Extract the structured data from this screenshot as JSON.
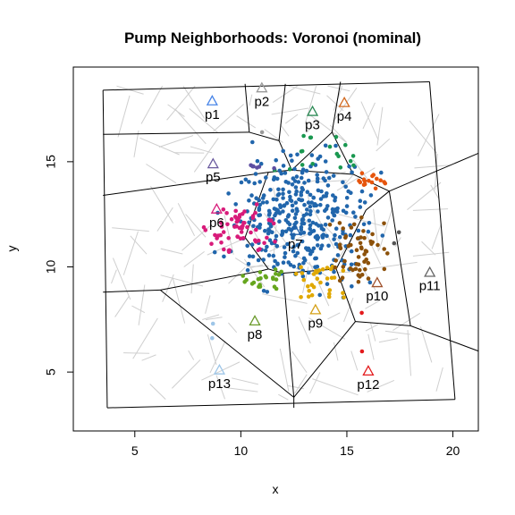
{
  "chart_data": {
    "type": "scatter",
    "title": "Pump Neighborhoods: Voronoi (nominal)",
    "xlabel": "x",
    "ylabel": "y",
    "xlim": [
      2.1,
      21.2
    ],
    "ylim": [
      2.2,
      19.5
    ],
    "xticks": [
      5,
      10,
      15,
      20
    ],
    "yticks": [
      5,
      10,
      15
    ],
    "grid": false,
    "legend": "none",
    "pumps": [
      {
        "id": "p1",
        "x": 8.65,
        "y": 17.89,
        "color": "#4a86e8"
      },
      {
        "id": "p2",
        "x": 10.99,
        "y": 18.51,
        "color": "#999999"
      },
      {
        "id": "p3",
        "x": 13.38,
        "y": 17.39,
        "color": "#2e8b57"
      },
      {
        "id": "p4",
        "x": 14.88,
        "y": 17.81,
        "color": "#d2691e"
      },
      {
        "id": "p5",
        "x": 8.69,
        "y": 14.9,
        "color": "#6a5a9e"
      },
      {
        "id": "p6",
        "x": 8.86,
        "y": 12.75,
        "color": "#d81b7a"
      },
      {
        "id": "p7",
        "x": 12.57,
        "y": 11.73,
        "color": "#1f5fa8"
      },
      {
        "id": "p8",
        "x": 10.66,
        "y": 7.43,
        "color": "#6a9a2a"
      },
      {
        "id": "p9",
        "x": 13.52,
        "y": 7.96,
        "color": "#d4a017"
      },
      {
        "id": "p10",
        "x": 16.43,
        "y": 9.25,
        "color": "#a0522d"
      },
      {
        "id": "p11",
        "x": 18.91,
        "y": 9.74,
        "color": "#666666"
      },
      {
        "id": "p12",
        "x": 16.01,
        "y": 5.05,
        "color": "#e31a1c"
      },
      {
        "id": "p13",
        "x": 8.99,
        "y": 5.1,
        "color": "#9ec6e8"
      }
    ],
    "cases": [
      {
        "pump": "p7",
        "color": "#2166ac",
        "count": 360,
        "center": [
          12.8,
          12.2
        ],
        "spread": [
          1.55,
          1.45
        ]
      },
      {
        "pump": "p6",
        "color": "#d81b7a",
        "count": 60,
        "center": [
          10.0,
          11.8
        ],
        "spread": [
          0.7,
          0.6
        ]
      },
      {
        "pump": "p3",
        "color": "#1a9850",
        "count": 18,
        "center": [
          13.6,
          15.4
        ],
        "spread": [
          0.8,
          0.6
        ]
      },
      {
        "pump": "p4",
        "color": "#e6550d",
        "count": 16,
        "center": [
          16.2,
          14.1
        ],
        "spread": [
          0.4,
          0.2
        ]
      },
      {
        "pump": "p5",
        "color": "#5e4fa2",
        "count": 6,
        "center": [
          10.9,
          14.7
        ],
        "spread": [
          0.3,
          0.1
        ]
      },
      {
        "pump": "p8",
        "color": "#66a61e",
        "count": 22,
        "center": [
          11.3,
          9.5
        ],
        "spread": [
          0.6,
          0.35
        ]
      },
      {
        "pump": "p9",
        "color": "#e0a800",
        "count": 30,
        "center": [
          13.8,
          9.2
        ],
        "spread": [
          0.7,
          0.55
        ]
      },
      {
        "pump": "p10",
        "color": "#8c510a",
        "count": 55,
        "center": [
          15.6,
          10.6
        ],
        "spread": [
          0.7,
          0.9
        ]
      },
      {
        "pump": "p11",
        "color": "#555555",
        "count": 2,
        "center": [
          17.3,
          11.4
        ],
        "spread": [
          0.1,
          0.2
        ]
      },
      {
        "pump": "p12",
        "color": "#e31a1c",
        "count": 2,
        "center": [
          15.8,
          6.8
        ],
        "spread": [
          0.1,
          0.6
        ]
      },
      {
        "pump": "p13",
        "color": "#9ec6e8",
        "count": 2,
        "center": [
          8.7,
          6.8
        ],
        "spread": [
          0.2,
          0.5
        ]
      },
      {
        "pump": "p2",
        "color": "#999999",
        "count": 1,
        "center": [
          11.0,
          16.4
        ],
        "spread": [
          0.0,
          0.0
        ]
      }
    ],
    "voronoi_edges": [
      [
        [
          3.5,
          18.4
        ],
        [
          18.9,
          18.8
        ]
      ],
      [
        [
          18.9,
          18.8
        ],
        [
          20.1,
          3.7
        ]
      ],
      [
        [
          20.1,
          3.7
        ],
        [
          3.7,
          3.3
        ]
      ],
      [
        [
          3.7,
          3.3
        ],
        [
          3.5,
          18.4
        ]
      ],
      [
        [
          10.2,
          18.7
        ],
        [
          10.4,
          16.4
        ]
      ],
      [
        [
          10.4,
          16.4
        ],
        [
          3.5,
          16.3
        ]
      ],
      [
        [
          10.4,
          16.4
        ],
        [
          11.8,
          16.0
        ]
      ],
      [
        [
          12.1,
          18.7
        ],
        [
          11.8,
          16.0
        ]
      ],
      [
        [
          11.8,
          16.0
        ],
        [
          12.4,
          14.6
        ]
      ],
      [
        [
          14.7,
          18.8
        ],
        [
          14.3,
          16.4
        ]
      ],
      [
        [
          14.3,
          16.4
        ],
        [
          12.4,
          14.6
        ]
      ],
      [
        [
          14.3,
          16.4
        ],
        [
          15.3,
          14.4
        ]
      ],
      [
        [
          12.4,
          14.6
        ],
        [
          15.3,
          14.4
        ]
      ],
      [
        [
          15.3,
          14.4
        ],
        [
          17.0,
          13.6
        ]
      ],
      [
        [
          17.0,
          13.6
        ],
        [
          21.2,
          15.4
        ]
      ],
      [
        [
          12.4,
          14.6
        ],
        [
          11.3,
          14.5
        ]
      ],
      [
        [
          11.3,
          14.5
        ],
        [
          3.5,
          13.4
        ]
      ],
      [
        [
          11.3,
          14.5
        ],
        [
          10.2,
          11.4
        ]
      ],
      [
        [
          10.2,
          11.4
        ],
        [
          11.3,
          9.9
        ]
      ],
      [
        [
          11.3,
          9.9
        ],
        [
          12.0,
          9.7
        ]
      ],
      [
        [
          12.0,
          9.7
        ],
        [
          14.5,
          9.9
        ]
      ],
      [
        [
          14.5,
          9.9
        ],
        [
          15.9,
          12.7
        ]
      ],
      [
        [
          15.9,
          12.7
        ],
        [
          17.0,
          13.6
        ]
      ],
      [
        [
          17.0,
          13.6
        ],
        [
          18.0,
          7.2
        ]
      ],
      [
        [
          18.0,
          7.2
        ],
        [
          15.4,
          7.4
        ]
      ],
      [
        [
          15.4,
          7.4
        ],
        [
          14.5,
          9.9
        ]
      ],
      [
        [
          18.0,
          7.2
        ],
        [
          21.2,
          6.0
        ]
      ],
      [
        [
          15.4,
          7.4
        ],
        [
          12.5,
          3.8
        ]
      ],
      [
        [
          12.0,
          9.7
        ],
        [
          12.5,
          3.8
        ]
      ],
      [
        [
          12.5,
          3.8
        ],
        [
          12.5,
          3.3
        ]
      ],
      [
        [
          12.5,
          3.8
        ],
        [
          6.2,
          8.9
        ]
      ],
      [
        [
          11.3,
          9.9
        ],
        [
          10.9,
          9.8
        ]
      ],
      [
        [
          10.9,
          9.8
        ],
        [
          6.2,
          8.9
        ]
      ],
      [
        [
          6.2,
          8.9
        ],
        [
          3.5,
          8.8
        ]
      ]
    ]
  }
}
